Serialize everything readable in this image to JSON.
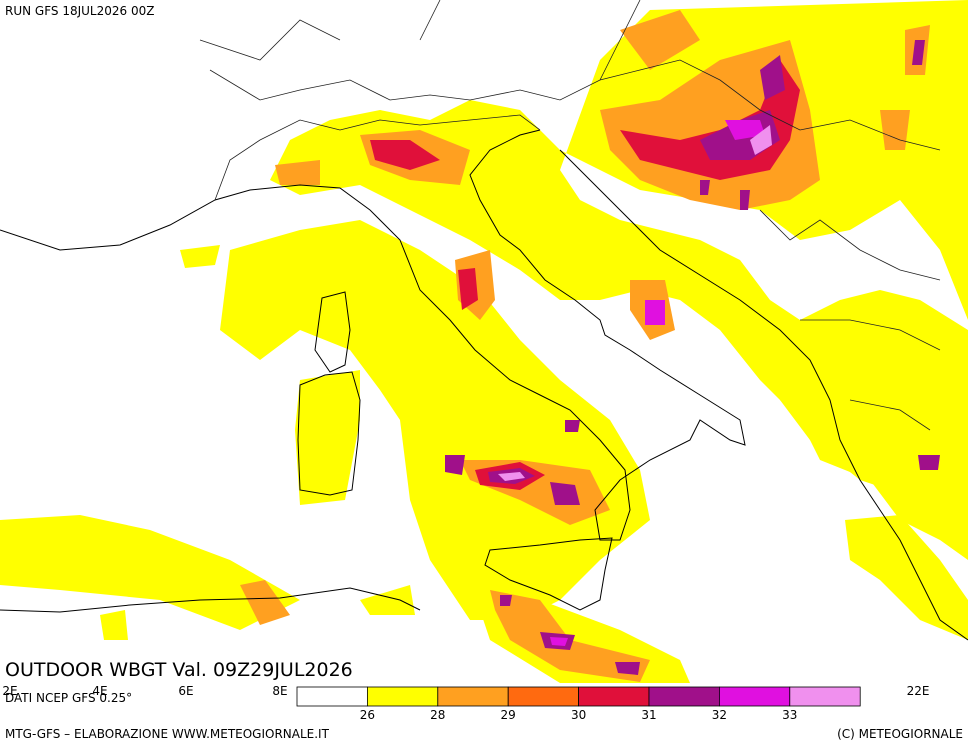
{
  "header": {
    "run": "RUN GFS 18JUL2026 00Z"
  },
  "map": {
    "title": "OUTDOOR WBGT Val. 09Z29JUL2026",
    "source": "DATI NCEP GFS 0.25°",
    "longitude_labels": [
      "2E",
      "4E",
      "6E",
      "8E",
      "22E"
    ]
  },
  "legend": {
    "colors": [
      "#ffffff",
      "#ffff00",
      "#ffa020",
      "#ff6a10",
      "#e0103a",
      "#a0108a",
      "#e010e0",
      "#f090ee"
    ],
    "labels": [
      "26",
      "28",
      "29",
      "30",
      "31",
      "32",
      "33"
    ]
  },
  "footer": {
    "left": "MTG-GFS – ELABORAZIONE WWW.METEOGIORNALE.IT",
    "right": "(C) METEOGIORNALE"
  }
}
